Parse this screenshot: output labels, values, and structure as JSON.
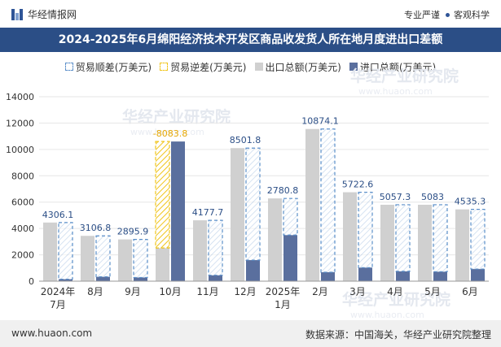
{
  "header": {
    "brand": "华经情报网",
    "slogan_left": "专业严谨",
    "slogan_right": "客观科学"
  },
  "title": "2024-2025年6月绵阳经济技术开发区商品收发货人所在地月度进出口差额",
  "footer": {
    "site": "www.huaon.com",
    "source": "数据来源：中国海关，华经产业研究院整理"
  },
  "watermark": "华经产业研究院",
  "watermark_url": "www.huaon.com",
  "colors": {
    "export": "#d0d0d0",
    "import": "#5a6f9e",
    "surplus": "#5b8fc9",
    "deficit": "#f0c419",
    "title_bg": "#2b4e86"
  },
  "chart_data": {
    "type": "bar",
    "categories": [
      "2024年7月",
      "8月",
      "9月",
      "10月",
      "11月",
      "12月",
      "2025年1月",
      "2月",
      "3月",
      "4月",
      "5月",
      "6月"
    ],
    "series": [
      {
        "name": "出口总额(万美元)",
        "values": [
          4450,
          3440,
          3170,
          2520,
          4620,
          10100,
          6280,
          11550,
          6750,
          5800,
          5800,
          5450
        ]
      },
      {
        "name": "进口总额(万美元)",
        "values": [
          150,
          330,
          280,
          10600,
          450,
          1600,
          3500,
          680,
          1030,
          750,
          720,
          920
        ]
      }
    ],
    "balance": {
      "values": [
        4306.1,
        3106.8,
        2895.9,
        -8083.8,
        4177.7,
        8501.8,
        2780.8,
        10874.1,
        5722.6,
        5057.3,
        5083,
        4535.3
      ],
      "labels": [
        "4306.1",
        "3106.8",
        "2895.9",
        "-8083.8",
        "4177.7",
        "8501.8",
        "2780.8",
        "10874.1",
        "5722.6",
        "5057.3",
        "5083",
        "4535.3"
      ]
    },
    "legend": [
      "贸易顺差(万美元)",
      "贸易逆差(万美元)",
      "出口总额(万美元)",
      "进口总额(万美元)"
    ],
    "yticks": [
      "0",
      "2000",
      "4000",
      "6000",
      "8000",
      "10000",
      "12000",
      "14000"
    ],
    "ylim": [
      0,
      14000
    ]
  }
}
